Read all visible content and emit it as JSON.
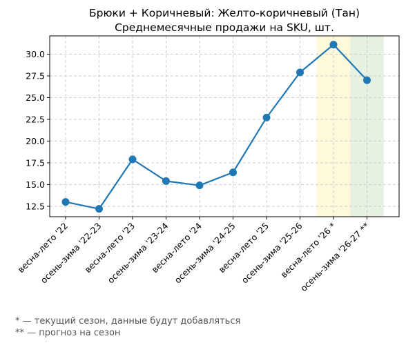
{
  "chart_data": {
    "type": "line",
    "title_line1": "Брюки + Коричневый: Желто-коричневый (Тан)",
    "title_line2": "Среднемесячные продажи на SKU, шт.",
    "categories": [
      "весна-лето '22",
      "осень-зима '22-23",
      "весна-лето '23",
      "осень-зима '23-24",
      "весна-лето '24",
      "осень-зима '24-25",
      "весна-лето '25",
      "осень-зима '25-26",
      "весна-лето '26 *",
      "осень-зима '26-27 **"
    ],
    "values": [
      13.0,
      12.2,
      17.9,
      15.4,
      14.9,
      16.4,
      22.7,
      27.9,
      31.1,
      27.0
    ],
    "ylim": [
      11.3,
      32.1
    ],
    "yticks": [
      "12.5",
      "15.0",
      "17.5",
      "20.0",
      "22.5",
      "25.0",
      "27.5",
      "30.0"
    ],
    "grid": true,
    "line_color": "#1f77b4",
    "highlights": [
      {
        "category_index": 8,
        "meaning": "current season",
        "color": "#fff9db"
      },
      {
        "category_index": 9,
        "meaning": "forecast",
        "color": "#e6f2e1"
      }
    ],
    "footnotes": [
      "* — текущий сезон, данные будут добавляться",
      "** — прогноз на сезон"
    ]
  }
}
